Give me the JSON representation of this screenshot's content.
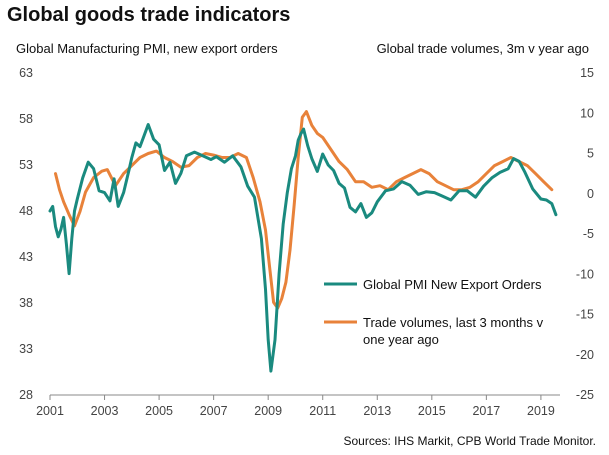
{
  "chart_data": {
    "type": "line",
    "title": "Global goods trade indicators",
    "left_axis_label": "Global Manufacturing PMI, new export orders",
    "right_axis_label": "Global trade volumes, 3m v year ago",
    "source": "Sources: IHS Markit, CPB World Trade Monitor.",
    "x_ticks": [
      "2001",
      "2003",
      "2005",
      "2007",
      "2009",
      "2011",
      "2013",
      "2015",
      "2017",
      "2019"
    ],
    "y_left_ticks": [
      "63",
      "58",
      "53",
      "48",
      "43",
      "38",
      "33",
      "28"
    ],
    "y_right_ticks": [
      "15",
      "10",
      "5",
      "0",
      "-5",
      "-10",
      "-15",
      "-20",
      "-25"
    ],
    "y_left_lim": [
      28,
      63
    ],
    "y_right_lim": [
      -25,
      15
    ],
    "x_lim": [
      2001.0,
      2019.7
    ],
    "grid": false,
    "legend_position": "lower-right",
    "series": [
      {
        "name": "Global PMI New Export Orders",
        "axis": "left",
        "color": "#1a8a7f",
        "x": [
          2001.0,
          2001.1,
          2001.2,
          2001.3,
          2001.4,
          2001.5,
          2001.6,
          2001.7,
          2001.8,
          2001.9,
          2002.0,
          2002.2,
          2002.4,
          2002.6,
          2002.8,
          2003.0,
          2003.2,
          2003.35,
          2003.5,
          2003.7,
          2003.9,
          2004.0,
          2004.15,
          2004.3,
          2004.45,
          2004.6,
          2004.8,
          2005.0,
          2005.2,
          2005.4,
          2005.6,
          2005.8,
          2006.0,
          2006.3,
          2006.6,
          2006.9,
          2007.1,
          2007.4,
          2007.7,
          2008.0,
          2008.25,
          2008.5,
          2008.75,
          2008.9,
          2009.0,
          2009.1,
          2009.25,
          2009.4,
          2009.55,
          2009.7,
          2009.85,
          2010.0,
          2010.1,
          2010.2,
          2010.3,
          2010.45,
          2010.6,
          2010.8,
          2011.0,
          2011.2,
          2011.4,
          2011.6,
          2011.8,
          2012.0,
          2012.2,
          2012.4,
          2012.6,
          2012.8,
          2013.0,
          2013.3,
          2013.6,
          2013.9,
          2014.2,
          2014.5,
          2014.8,
          2015.1,
          2015.4,
          2015.7,
          2016.0,
          2016.3,
          2016.6,
          2016.9,
          2017.2,
          2017.5,
          2017.8,
          2018.0,
          2018.2,
          2018.4,
          2018.7,
          2019.0,
          2019.2,
          2019.4,
          2019.55
        ],
        "values": [
          48.0,
          48.5,
          46.3,
          45.2,
          46.0,
          47.3,
          44.4,
          41.2,
          45.0,
          48.0,
          49.3,
          51.6,
          53.3,
          52.6,
          50.2,
          50.0,
          49.1,
          51.5,
          48.5,
          50.0,
          52.5,
          53.8,
          55.4,
          55.0,
          56.2,
          57.4,
          55.8,
          55.2,
          52.4,
          53.3,
          51.0,
          52.1,
          54.0,
          54.4,
          54.0,
          53.6,
          53.9,
          53.3,
          54.0,
          52.8,
          50.7,
          49.5,
          45.0,
          39.5,
          34.0,
          30.6,
          34.0,
          41.2,
          46.6,
          50.0,
          52.6,
          54.0,
          55.7,
          56.4,
          56.9,
          55.1,
          53.7,
          52.3,
          54.2,
          53.0,
          52.4,
          51.0,
          50.5,
          48.4,
          47.9,
          48.8,
          47.3,
          47.8,
          49.0,
          50.2,
          50.4,
          51.2,
          50.8,
          49.8,
          50.1,
          50.0,
          49.6,
          49.2,
          50.2,
          50.2,
          49.5,
          50.7,
          51.6,
          52.2,
          52.6,
          53.7,
          53.4,
          52.3,
          50.4,
          49.3,
          49.2,
          48.8,
          47.6
        ]
      },
      {
        "name": "Trade volumes, last 3 months v one year ago",
        "axis": "right",
        "color": "#e8823a",
        "x": [
          2001.2,
          2001.35,
          2001.5,
          2001.7,
          2001.9,
          2002.1,
          2002.3,
          2002.6,
          2002.9,
          2003.1,
          2003.4,
          2003.7,
          2004.0,
          2004.3,
          2004.6,
          2004.9,
          2005.2,
          2005.5,
          2005.8,
          2006.1,
          2006.4,
          2006.7,
          2007.0,
          2007.3,
          2007.6,
          2007.9,
          2008.2,
          2008.45,
          2008.7,
          2008.9,
          2009.05,
          2009.2,
          2009.35,
          2009.5,
          2009.65,
          2009.8,
          2009.95,
          2010.1,
          2010.25,
          2010.4,
          2010.6,
          2010.8,
          2011.0,
          2011.3,
          2011.6,
          2011.9,
          2012.2,
          2012.5,
          2012.8,
          2013.1,
          2013.4,
          2013.7,
          2014.0,
          2014.3,
          2014.6,
          2014.9,
          2015.2,
          2015.5,
          2015.8,
          2016.1,
          2016.4,
          2016.7,
          2017.0,
          2017.3,
          2017.6,
          2017.9,
          2018.2,
          2018.5,
          2018.8,
          2019.1,
          2019.4
        ],
        "values": [
          2.5,
          0.5,
          -1.0,
          -2.6,
          -4.0,
          -2.2,
          0.2,
          2.0,
          2.8,
          3.0,
          1.0,
          2.5,
          3.5,
          4.5,
          5.0,
          5.3,
          4.5,
          4.0,
          3.3,
          3.5,
          4.5,
          5.0,
          4.8,
          4.5,
          4.5,
          5.0,
          4.5,
          2.0,
          -1.0,
          -4.5,
          -9.0,
          -13.5,
          -14.2,
          -13.0,
          -11.0,
          -7.0,
          -1.5,
          4.5,
          9.5,
          10.2,
          8.5,
          7.5,
          7.0,
          5.5,
          4.0,
          3.0,
          1.5,
          1.5,
          0.8,
          1.0,
          0.5,
          1.5,
          2.0,
          2.5,
          3.0,
          2.5,
          1.5,
          1.0,
          0.5,
          0.5,
          0.8,
          1.5,
          2.5,
          3.5,
          4.0,
          4.5,
          4.0,
          3.5,
          2.5,
          1.5,
          0.5
        ]
      }
    ]
  }
}
